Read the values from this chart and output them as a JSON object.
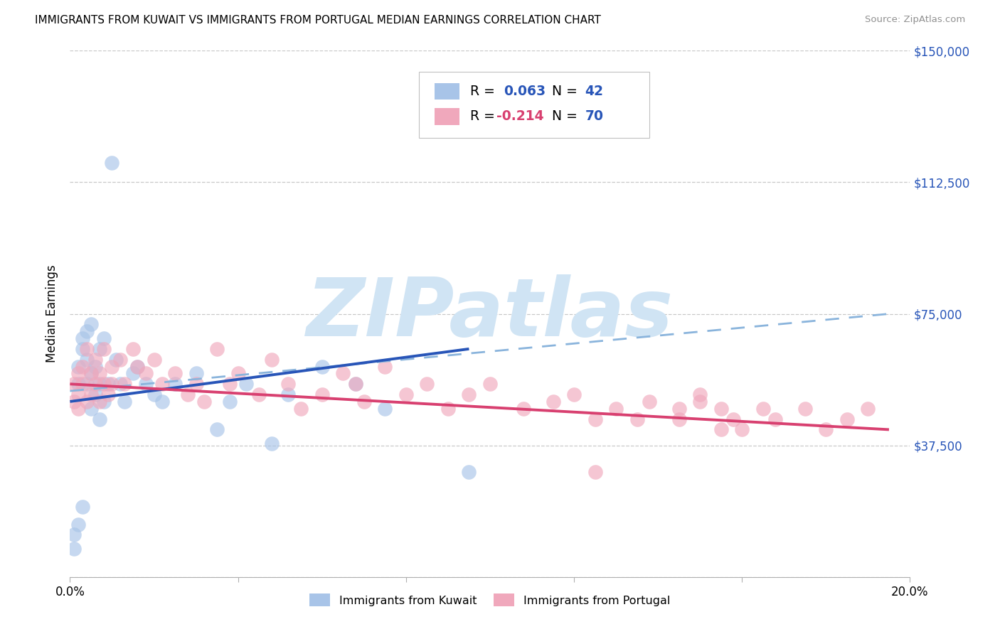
{
  "title": "IMMIGRANTS FROM KUWAIT VS IMMIGRANTS FROM PORTUGAL MEDIAN EARNINGS CORRELATION CHART",
  "source": "Source: ZipAtlas.com",
  "ylabel": "Median Earnings",
  "xlim": [
    0.0,
    0.2
  ],
  "ylim": [
    0,
    150000
  ],
  "yticks": [
    0,
    37500,
    75000,
    112500,
    150000
  ],
  "ytick_labels": [
    "",
    "$37,500",
    "$75,000",
    "$112,500",
    "$150,000"
  ],
  "kuwait_R": 0.063,
  "kuwait_N": 42,
  "portugal_R": -0.214,
  "portugal_N": 70,
  "kuwait_scatter_color": "#a8c4e8",
  "portugal_scatter_color": "#f0a8bc",
  "kuwait_line_color": "#2855b8",
  "portugal_line_color": "#d84070",
  "dashed_line_color": "#8ab4dc",
  "watermark_color": "#d0e4f4",
  "bg_color": "#ffffff",
  "grid_color": "#c8c8c8",
  "title_fontsize": 11,
  "axis_fontsize": 12,
  "legend_blue": "#2855b8",
  "legend_pink": "#d84070",
  "source_color": "#909090",
  "kuwait_x": [
    0.001,
    0.001,
    0.002,
    0.002,
    0.002,
    0.003,
    0.003,
    0.003,
    0.004,
    0.004,
    0.004,
    0.005,
    0.005,
    0.005,
    0.006,
    0.006,
    0.007,
    0.007,
    0.007,
    0.008,
    0.008,
    0.009,
    0.01,
    0.011,
    0.012,
    0.013,
    0.015,
    0.016,
    0.018,
    0.02,
    0.022,
    0.025,
    0.03,
    0.035,
    0.038,
    0.042,
    0.048,
    0.052,
    0.06,
    0.068,
    0.075,
    0.095
  ],
  "kuwait_y": [
    8000,
    12000,
    55000,
    60000,
    15000,
    65000,
    68000,
    20000,
    70000,
    62000,
    55000,
    72000,
    58000,
    48000,
    60000,
    52000,
    65000,
    55000,
    45000,
    68000,
    50000,
    55000,
    118000,
    62000,
    55000,
    50000,
    58000,
    60000,
    55000,
    52000,
    50000,
    55000,
    58000,
    42000,
    50000,
    55000,
    38000,
    52000,
    60000,
    55000,
    48000,
    30000
  ],
  "portugal_x": [
    0.001,
    0.001,
    0.002,
    0.002,
    0.002,
    0.003,
    0.003,
    0.004,
    0.004,
    0.005,
    0.005,
    0.006,
    0.006,
    0.007,
    0.007,
    0.008,
    0.008,
    0.009,
    0.01,
    0.01,
    0.012,
    0.013,
    0.015,
    0.016,
    0.018,
    0.02,
    0.022,
    0.025,
    0.028,
    0.03,
    0.032,
    0.035,
    0.038,
    0.04,
    0.045,
    0.048,
    0.052,
    0.055,
    0.06,
    0.065,
    0.068,
    0.07,
    0.075,
    0.08,
    0.085,
    0.09,
    0.095,
    0.1,
    0.108,
    0.115,
    0.12,
    0.125,
    0.13,
    0.138,
    0.145,
    0.15,
    0.155,
    0.16,
    0.168,
    0.175,
    0.18,
    0.185,
    0.19,
    0.125,
    0.135,
    0.145,
    0.15,
    0.155,
    0.158,
    0.165
  ],
  "portugal_y": [
    50000,
    55000,
    48000,
    58000,
    52000,
    60000,
    55000,
    65000,
    50000,
    58000,
    52000,
    62000,
    55000,
    58000,
    50000,
    65000,
    55000,
    52000,
    60000,
    55000,
    62000,
    55000,
    65000,
    60000,
    58000,
    62000,
    55000,
    58000,
    52000,
    55000,
    50000,
    65000,
    55000,
    58000,
    52000,
    62000,
    55000,
    48000,
    52000,
    58000,
    55000,
    50000,
    60000,
    52000,
    55000,
    48000,
    52000,
    55000,
    48000,
    50000,
    52000,
    45000,
    48000,
    50000,
    45000,
    52000,
    48000,
    42000,
    45000,
    48000,
    42000,
    45000,
    48000,
    30000,
    45000,
    48000,
    50000,
    42000,
    45000,
    48000
  ],
  "kuw_line_x0": 0.0,
  "kuw_line_y0": 50000,
  "kuw_line_x1": 0.095,
  "kuw_line_y1": 65000,
  "port_line_x0": 0.0,
  "port_line_y0": 55000,
  "port_line_x1": 0.195,
  "port_line_y1": 42000,
  "dash_line_x0": 0.0,
  "dash_line_y0": 53000,
  "dash_line_x1": 0.195,
  "dash_line_y1": 75000
}
